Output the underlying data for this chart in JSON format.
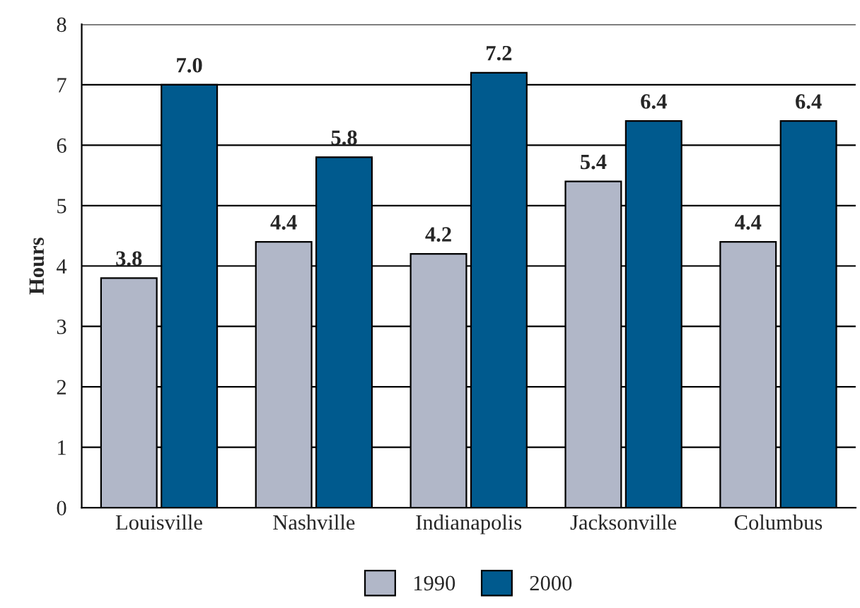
{
  "chart_data": {
    "type": "bar",
    "ylabel": "Hours",
    "categories": [
      "Louisville",
      "Nashville",
      "Indianapolis",
      "Jacksonville",
      "Columbus"
    ],
    "series": [
      {
        "name": "1990",
        "color": "#b1b7c8",
        "values": [
          3.8,
          4.4,
          4.2,
          5.4,
          4.4
        ]
      },
      {
        "name": "2000",
        "color": "#005a8e",
        "values": [
          7.0,
          5.8,
          7.2,
          6.4,
          6.4
        ]
      }
    ],
    "value_labels": [
      [
        "3.8",
        "4.4",
        "4.2",
        "5.4",
        "4.4"
      ],
      [
        "7.0",
        "5.8",
        "7.2",
        "6.4",
        "6.4"
      ]
    ],
    "ylim": [
      0,
      8
    ],
    "yticks": [
      0,
      1,
      2,
      3,
      4,
      5,
      6,
      7,
      8
    ],
    "grid": "y",
    "legend": "bottom"
  }
}
